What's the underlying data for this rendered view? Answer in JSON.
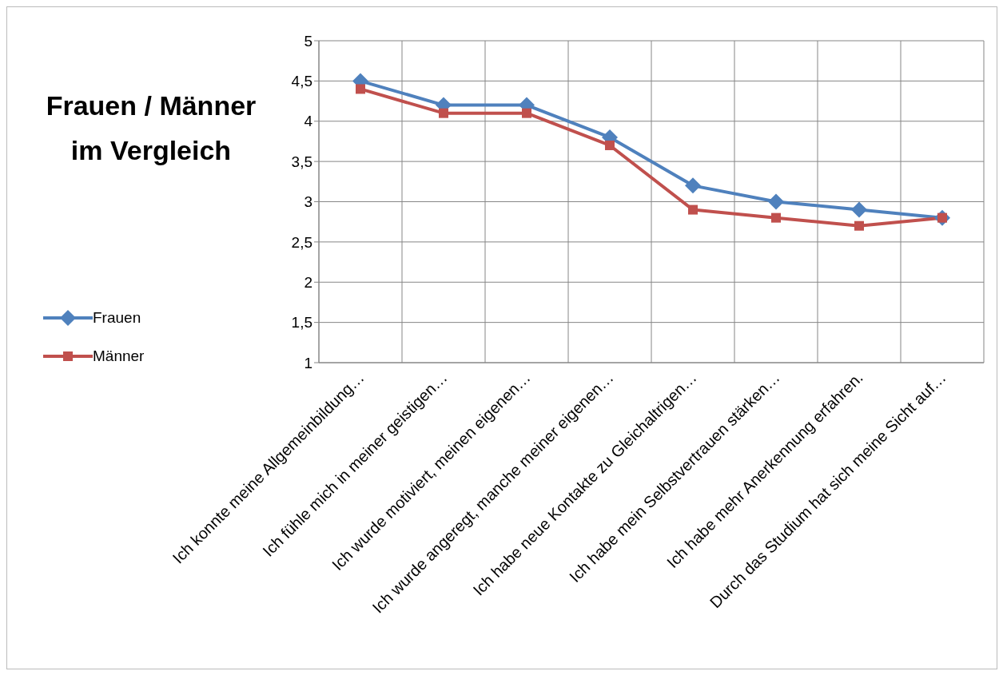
{
  "chart_data": {
    "type": "line",
    "title": "Frauen / Männer im Vergleich",
    "categories": [
      "Ich konnte meine Allgemeinbildung…",
      "Ich fühle mich in meiner geistigen…",
      "Ich wurde motiviert, meinen eigenen…",
      "Ich wurde angeregt, manche meiner eigenen…",
      "Ich habe neue Kontakte zu Gleichaltrigen…",
      "Ich habe mein Selbstvertrauen stärken…",
      "Ich habe mehr Anerkennung erfahren.",
      "Durch das Studium hat sich meine Sicht auf…"
    ],
    "series": [
      {
        "name": "Frauen",
        "color": "#4f81bd",
        "marker": "diamond",
        "values": [
          4.5,
          4.2,
          4.2,
          3.8,
          3.2,
          3.0,
          2.9,
          2.8
        ]
      },
      {
        "name": "Männer",
        "color": "#c0504d",
        "marker": "square",
        "values": [
          4.4,
          4.1,
          4.1,
          3.7,
          2.9,
          2.8,
          2.7,
          2.8
        ]
      }
    ],
    "ylim": [
      1,
      5
    ],
    "yticks": [
      1,
      {
        "value": 1.5,
        "label": "1,5"
      },
      2,
      {
        "value": 2.5,
        "label": "2,5"
      },
      3,
      {
        "value": 3.5,
        "label": "3,5"
      },
      4,
      {
        "value": 4.5,
        "label": "4,5"
      },
      5
    ],
    "grid": true,
    "legend": "left",
    "line_style": "solid"
  }
}
